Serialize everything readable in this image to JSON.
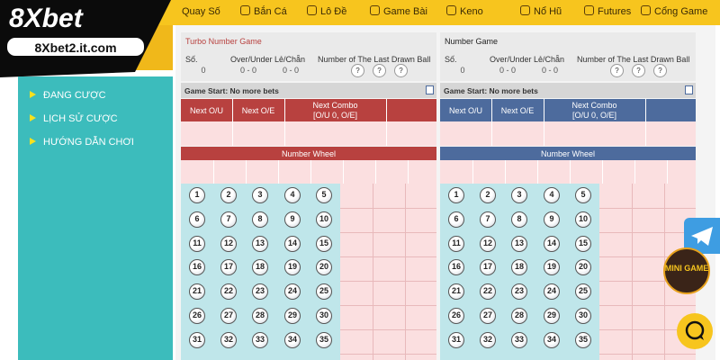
{
  "logo": {
    "brand": "8Xbet",
    "domain": "8Xbet2.it.com"
  },
  "nav": [
    "Quay Số",
    "Bắn Cá",
    "Lô Đề",
    "Game Bài",
    "Keno",
    "Nổ Hũ",
    "Futures",
    "Cổng Game"
  ],
  "sidebar": [
    "ĐANG CƯỢC",
    "LỊCH SỬ CƯỢC",
    "HƯỚNG DẪN CHƠI"
  ],
  "panels": [
    {
      "title": "Turbo Number Game",
      "stats_headers": [
        "Số.",
        "Over/Under",
        "Lẻ/Chẵn",
        "Number of The Last Drawn Ball"
      ],
      "stats_values": [
        "0",
        "0 - 0",
        "0 - 0"
      ],
      "last_balls": [
        "?",
        "?",
        "?"
      ],
      "status": "Game Start: No more bets",
      "next_headers": [
        "Next O/U",
        "Next O/E"
      ],
      "combo": [
        "Next Combo",
        "[O/U 0, O/E]"
      ],
      "wheel_title": "Number Wheel",
      "balls": [
        1,
        2,
        3,
        4,
        5,
        6,
        7,
        8,
        9,
        10,
        11,
        12,
        13,
        14,
        15,
        16,
        17,
        18,
        19,
        20,
        21,
        22,
        23,
        24,
        25,
        26,
        27,
        28,
        29,
        30,
        31,
        32,
        33,
        34,
        35
      ]
    },
    {
      "title": "Number Game",
      "stats_headers": [
        "Số.",
        "Over/Under",
        "Lẻ/Chẵn",
        "Number of The Last Drawn Ball"
      ],
      "stats_values": [
        "0",
        "0 - 0",
        "0 - 0"
      ],
      "last_balls": [
        "?",
        "?",
        "?"
      ],
      "status": "Game Start: No more bets",
      "next_headers": [
        "Next O/U",
        "Next O/E"
      ],
      "combo": [
        "Next Combo",
        "[O/U 0, O/E]"
      ],
      "wheel_title": "Number Wheel",
      "balls": [
        1,
        2,
        3,
        4,
        5,
        6,
        7,
        8,
        9,
        10,
        11,
        12,
        13,
        14,
        15,
        16,
        17,
        18,
        19,
        20,
        21,
        22,
        23,
        24,
        25,
        26,
        27,
        28,
        29,
        30,
        31,
        32,
        33,
        34,
        35
      ]
    }
  ],
  "floating": {
    "mini_game": "MINI GAME"
  }
}
